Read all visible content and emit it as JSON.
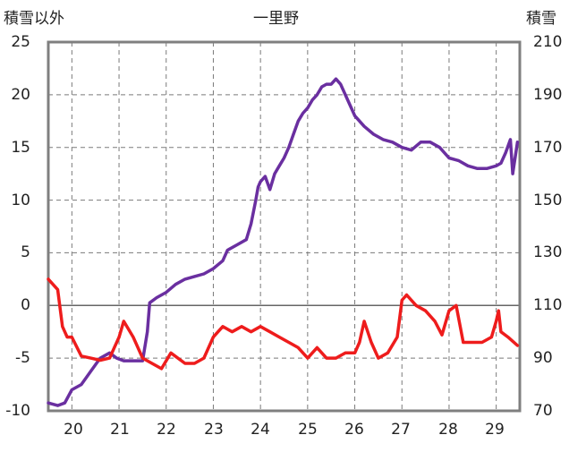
{
  "chart_data": {
    "type": "line",
    "title": "一里野",
    "ylabel_left": "積雪以外",
    "ylabel_right": "積雪",
    "x_ticks": [
      "20",
      "21",
      "22",
      "23",
      "24",
      "25",
      "26",
      "27",
      "28",
      "29"
    ],
    "ylim_left": [
      -10,
      25
    ],
    "ylim_right": [
      70,
      210
    ],
    "y_ticks_left": [
      "25",
      "20",
      "15",
      "10",
      "5",
      "0",
      "-5",
      "-10"
    ],
    "y_ticks_right": [
      "210",
      "190",
      "170",
      "150",
      "130",
      "110",
      "90",
      "70"
    ],
    "xlim": [
      19.5,
      29.5
    ],
    "grid": true,
    "series": [
      {
        "color": "#6a2fa0",
        "axis": "right",
        "x": [
          19.5,
          19.7,
          19.85,
          20.0,
          20.2,
          20.4,
          20.6,
          20.8,
          20.95,
          21.1,
          21.3,
          21.5,
          21.6,
          21.65,
          21.8,
          22.0,
          22.2,
          22.4,
          22.6,
          22.8,
          23.0,
          23.2,
          23.3,
          23.5,
          23.7,
          23.8,
          23.9,
          23.95,
          24.0,
          24.1,
          24.2,
          24.3,
          24.4,
          24.5,
          24.6,
          24.7,
          24.8,
          24.9,
          25.0,
          25.1,
          25.2,
          25.3,
          25.4,
          25.5,
          25.6,
          25.7,
          25.8,
          25.9,
          26.0,
          26.2,
          26.4,
          26.6,
          26.8,
          27.0,
          27.2,
          27.4,
          27.6,
          27.8,
          28.0,
          28.2,
          28.4,
          28.6,
          28.8,
          29.0,
          29.1,
          29.2,
          29.3,
          29.35,
          29.45
        ],
        "values": [
          73,
          72,
          73,
          78,
          80,
          85,
          90,
          92,
          90,
          89,
          89,
          89,
          100,
          111,
          113,
          115,
          118,
          120,
          121,
          122,
          124,
          127,
          131,
          133,
          135,
          141,
          150,
          155,
          157,
          159,
          154,
          160,
          163,
          166,
          170,
          175,
          180,
          183,
          185,
          188,
          190,
          193,
          194,
          194,
          196,
          194,
          190,
          186,
          182,
          178,
          175,
          173,
          172,
          170,
          169,
          172,
          172,
          170,
          166,
          165,
          163,
          162,
          162,
          163,
          164,
          168,
          173,
          160,
          172
        ]
      },
      {
        "color": "#ee1c1c",
        "axis": "left",
        "x": [
          19.5,
          19.7,
          19.8,
          19.9,
          20.0,
          20.2,
          20.4,
          20.6,
          20.8,
          21.0,
          21.1,
          21.3,
          21.5,
          21.7,
          21.9,
          22.1,
          22.4,
          22.6,
          22.8,
          23.0,
          23.2,
          23.4,
          23.6,
          23.8,
          24.0,
          24.2,
          24.4,
          24.6,
          24.8,
          25.0,
          25.2,
          25.4,
          25.6,
          25.8,
          26.0,
          26.1,
          26.2,
          26.35,
          26.5,
          26.7,
          26.9,
          27.0,
          27.1,
          27.3,
          27.5,
          27.7,
          27.85,
          28.0,
          28.15,
          28.3,
          28.5,
          28.7,
          28.9,
          29.0,
          29.05,
          29.1,
          29.25,
          29.45
        ],
        "values": [
          2.5,
          1.5,
          -2.0,
          -3.0,
          -3.0,
          -4.8,
          -5.0,
          -5.2,
          -5.0,
          -3.0,
          -1.5,
          -3.0,
          -5.0,
          -5.5,
          -6.0,
          -4.5,
          -5.5,
          -5.5,
          -5.0,
          -3.0,
          -2.0,
          -2.5,
          -2.0,
          -2.5,
          -2.0,
          -2.5,
          -3.0,
          -3.5,
          -4.0,
          -5.0,
          -4.0,
          -5.0,
          -5.0,
          -4.5,
          -4.5,
          -3.5,
          -1.5,
          -3.5,
          -5.0,
          -4.5,
          -3.0,
          0.5,
          1.0,
          0.0,
          -0.5,
          -1.5,
          -2.8,
          -0.5,
          0.0,
          -3.5,
          -3.5,
          -3.5,
          -3.0,
          -1.5,
          -0.5,
          -2.5,
          -3.0,
          -3.8
        ]
      }
    ]
  }
}
